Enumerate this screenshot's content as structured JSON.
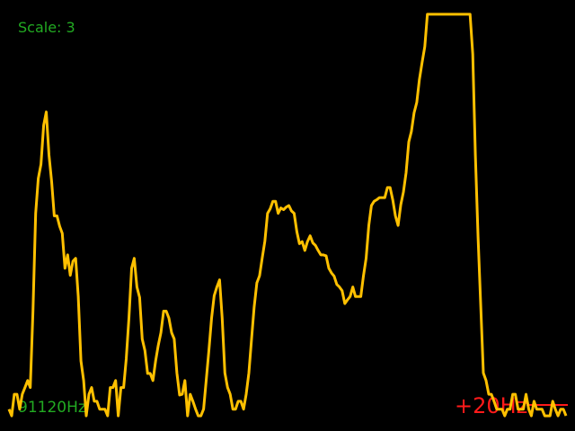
{
  "display": {
    "scale_label": "Scale: 3",
    "frequency_label": "91120Hz",
    "offset_label": "+20Hz",
    "background_color": "#000000",
    "trace_color": "#ffc000",
    "label_color": "#22aa22",
    "marker_color": "#ff1a1a"
  },
  "chart_data": {
    "type": "line",
    "title": "",
    "xlabel": "",
    "ylabel": "",
    "ylim": [
      0,
      100
    ],
    "grid": false,
    "legend": "none",
    "values": [
      3.3,
      1.7,
      6.9,
      6.9,
      3.3,
      6.9,
      8.5,
      10.2,
      8.5,
      26.9,
      50.4,
      58.8,
      62.2,
      71.6,
      74.8,
      64.5,
      58.0,
      49.8,
      49.8,
      47.3,
      45.6,
      37.2,
      40.4,
      35.5,
      38.9,
      39.6,
      30.4,
      14.9,
      10.2,
      1.7,
      6.9,
      8.5,
      5.2,
      5.2,
      3.3,
      3.3,
      3.3,
      1.7,
      8.5,
      8.5,
      10.2,
      1.7,
      8.5,
      8.5,
      15.4,
      25.2,
      37.2,
      39.6,
      32.7,
      30.2,
      20.2,
      17.4,
      11.9,
      11.9,
      10.2,
      14.9,
      18.6,
      21.7,
      26.9,
      26.9,
      25.2,
      21.7,
      20.2,
      12.0,
      6.7,
      6.9,
      10.2,
      1.7,
      6.9,
      5.2,
      3.3,
      1.7,
      1.7,
      3.3,
      10.2,
      17.4,
      25.2,
      30.6,
      32.7,
      34.4,
      25.2,
      12.0,
      8.5,
      6.9,
      3.3,
      3.3,
      5.2,
      5.2,
      3.3,
      6.9,
      12.0,
      20.2,
      27.9,
      33.7,
      35.4,
      39.6,
      43.7,
      50.4,
      51.5,
      53.3,
      53.3,
      50.4,
      51.7,
      51.3,
      51.9,
      52.3,
      51.0,
      50.4,
      46.0,
      43.1,
      43.6,
      41.5,
      43.6,
      45.0,
      43.3,
      42.7,
      41.5,
      40.4,
      40.4,
      40.2,
      37.2,
      36.1,
      35.3,
      33.3,
      32.7,
      31.8,
      28.7,
      29.6,
      30.4,
      32.7,
      30.4,
      30.4,
      30.4,
      35.3,
      39.6,
      47.5,
      52.3,
      53.3,
      53.7,
      54.2,
      54.2,
      54.2,
      56.6,
      56.6,
      53.6,
      49.8,
      47.5,
      52.5,
      55.5,
      60.2,
      67.6,
      70.1,
      74.6,
      77.1,
      82.6,
      86.7,
      90.5,
      98.3,
      98.3,
      98.3,
      98.3,
      98.3,
      98.3,
      98.3,
      98.3,
      98.3,
      98.3,
      98.3,
      98.3,
      98.3,
      98.3,
      98.3,
      98.3,
      98.3,
      88.7,
      64.5,
      44.7,
      28.1,
      12.0,
      10.2,
      6.9,
      6.9,
      5.2,
      3.3,
      3.3,
      3.3,
      1.7,
      3.3,
      3.3,
      6.9,
      6.9,
      3.3,
      3.3,
      3.3,
      6.9,
      3.3,
      1.7,
      5.2,
      3.3,
      3.3,
      3.3,
      1.7,
      1.7,
      1.7,
      5.2,
      3.3,
      1.7,
      3.3,
      3.3,
      1.7
    ]
  }
}
